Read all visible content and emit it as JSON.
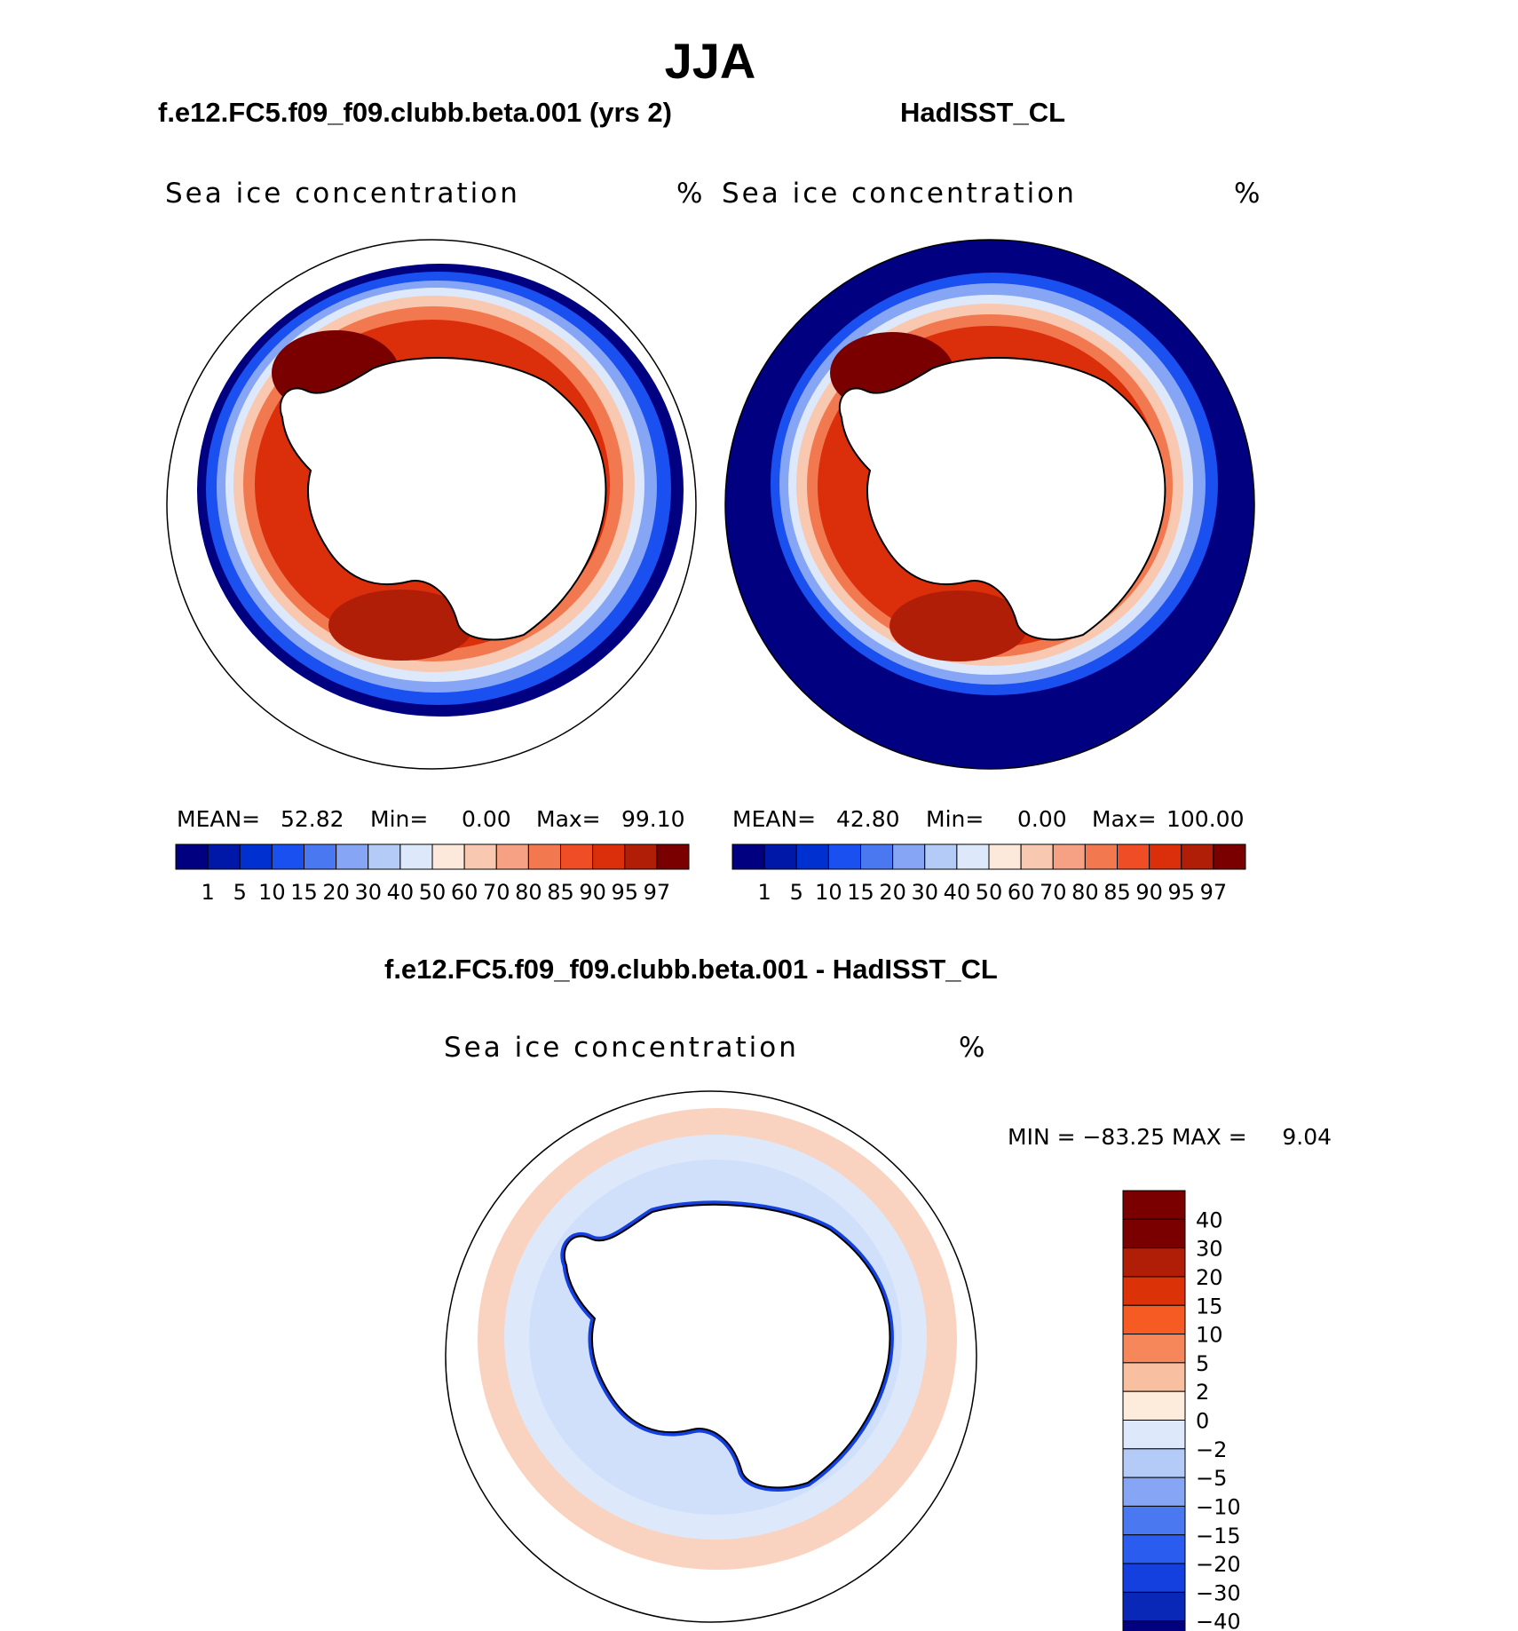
{
  "figure": {
    "title": "JJA"
  },
  "panels": [
    {
      "case_title": "f.e12.FC5.f09_f09.clubb.beta.001 (yrs 2)",
      "field": "Sea ice concentration",
      "units": "%",
      "stats": {
        "mean_label": "MEAN=",
        "mean": "52.82",
        "min_label": "Min=",
        "min": "0.00",
        "max_label": "Max=",
        "max": "99.10"
      }
    },
    {
      "case_title": "HadISST_CL",
      "field": "Sea ice concentration",
      "units": "%",
      "stats": {
        "mean_label": "MEAN=",
        "mean": "42.80",
        "min_label": "Min=",
        "min": "0.00",
        "max_label": "Max=",
        "max": "100.00"
      }
    }
  ],
  "diff_panel": {
    "case_title": "f.e12.FC5.f09_f09.clubb.beta.001 - HadISST_CL",
    "field": "Sea ice concentration",
    "units": "%",
    "min_max_text": "MIN = −83.25 MAX =     9.04"
  },
  "colorbar_main": {
    "colors": [
      "#000080",
      "#0018a8",
      "#0030d0",
      "#1a4ff0",
      "#4a78f0",
      "#86a6f5",
      "#b4cbf8",
      "#dde9fb",
      "#fde9dc",
      "#f8c8b0",
      "#f6a183",
      "#f2794f",
      "#ef4d25",
      "#db2f0c",
      "#b11e08",
      "#7a0000"
    ],
    "labels": [
      "1",
      "5",
      "10",
      "15",
      "20",
      "30",
      "40",
      "50",
      "60",
      "70",
      "80",
      "85",
      "90",
      "95",
      "97"
    ]
  },
  "colorbar_diff": {
    "colors": [
      "#7a0000",
      "#b11e08",
      "#db3208",
      "#f55b22",
      "#f6875a",
      "#f8c0a0",
      "#fdebdc",
      "#dde9fb",
      "#b4cbf8",
      "#86a6f5",
      "#4a78f0",
      "#2a5cf0",
      "#1440e0",
      "#0a28b8",
      "#000080"
    ],
    "labels": [
      "40",
      "30",
      "20",
      "15",
      "10",
      "5",
      "2",
      "0",
      "−2",
      "−5",
      "−10",
      "−15",
      "−20",
      "−30",
      "−40"
    ]
  },
  "map_colors": {
    "ocean_deep": "#000080",
    "land": "#ffffff",
    "ice_ring_outer": "#1a4ff0",
    "ice_ring_core": "#db2f0c",
    "ice_max": "#7a0000",
    "diff_pos": "#f8c8b0",
    "diff_neg": "#dde9fb",
    "diff_strong_neg": "#1440e0"
  }
}
